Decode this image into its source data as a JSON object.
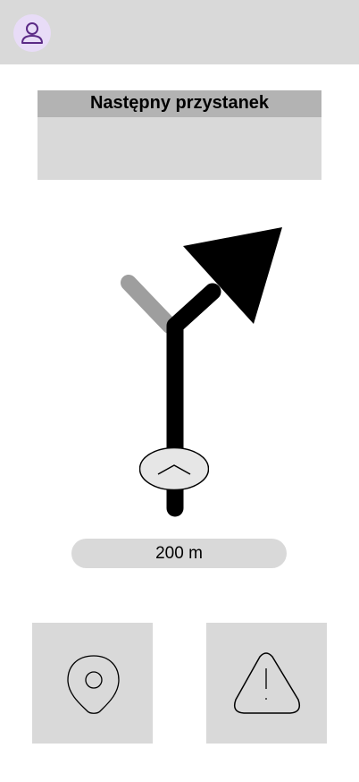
{
  "header": {
    "avatar_icon": "user-icon",
    "avatar_color": "#e8dcf7",
    "icon_color": "#5b2a86"
  },
  "next_stop": {
    "title": "Następny przystanek",
    "value": ""
  },
  "navigation": {
    "maneuver": "turn-slight-right",
    "distance": "200 m",
    "expand_icon": "chevron-up-icon"
  },
  "actions": [
    {
      "icon": "location-pin-icon"
    },
    {
      "icon": "warning-triangle-icon"
    }
  ],
  "colors": {
    "panel_bg": "#d9d9d9",
    "panel_header_bg": "#b3b3b3",
    "route_active": "#000000",
    "route_inactive": "#9e9e9e"
  }
}
